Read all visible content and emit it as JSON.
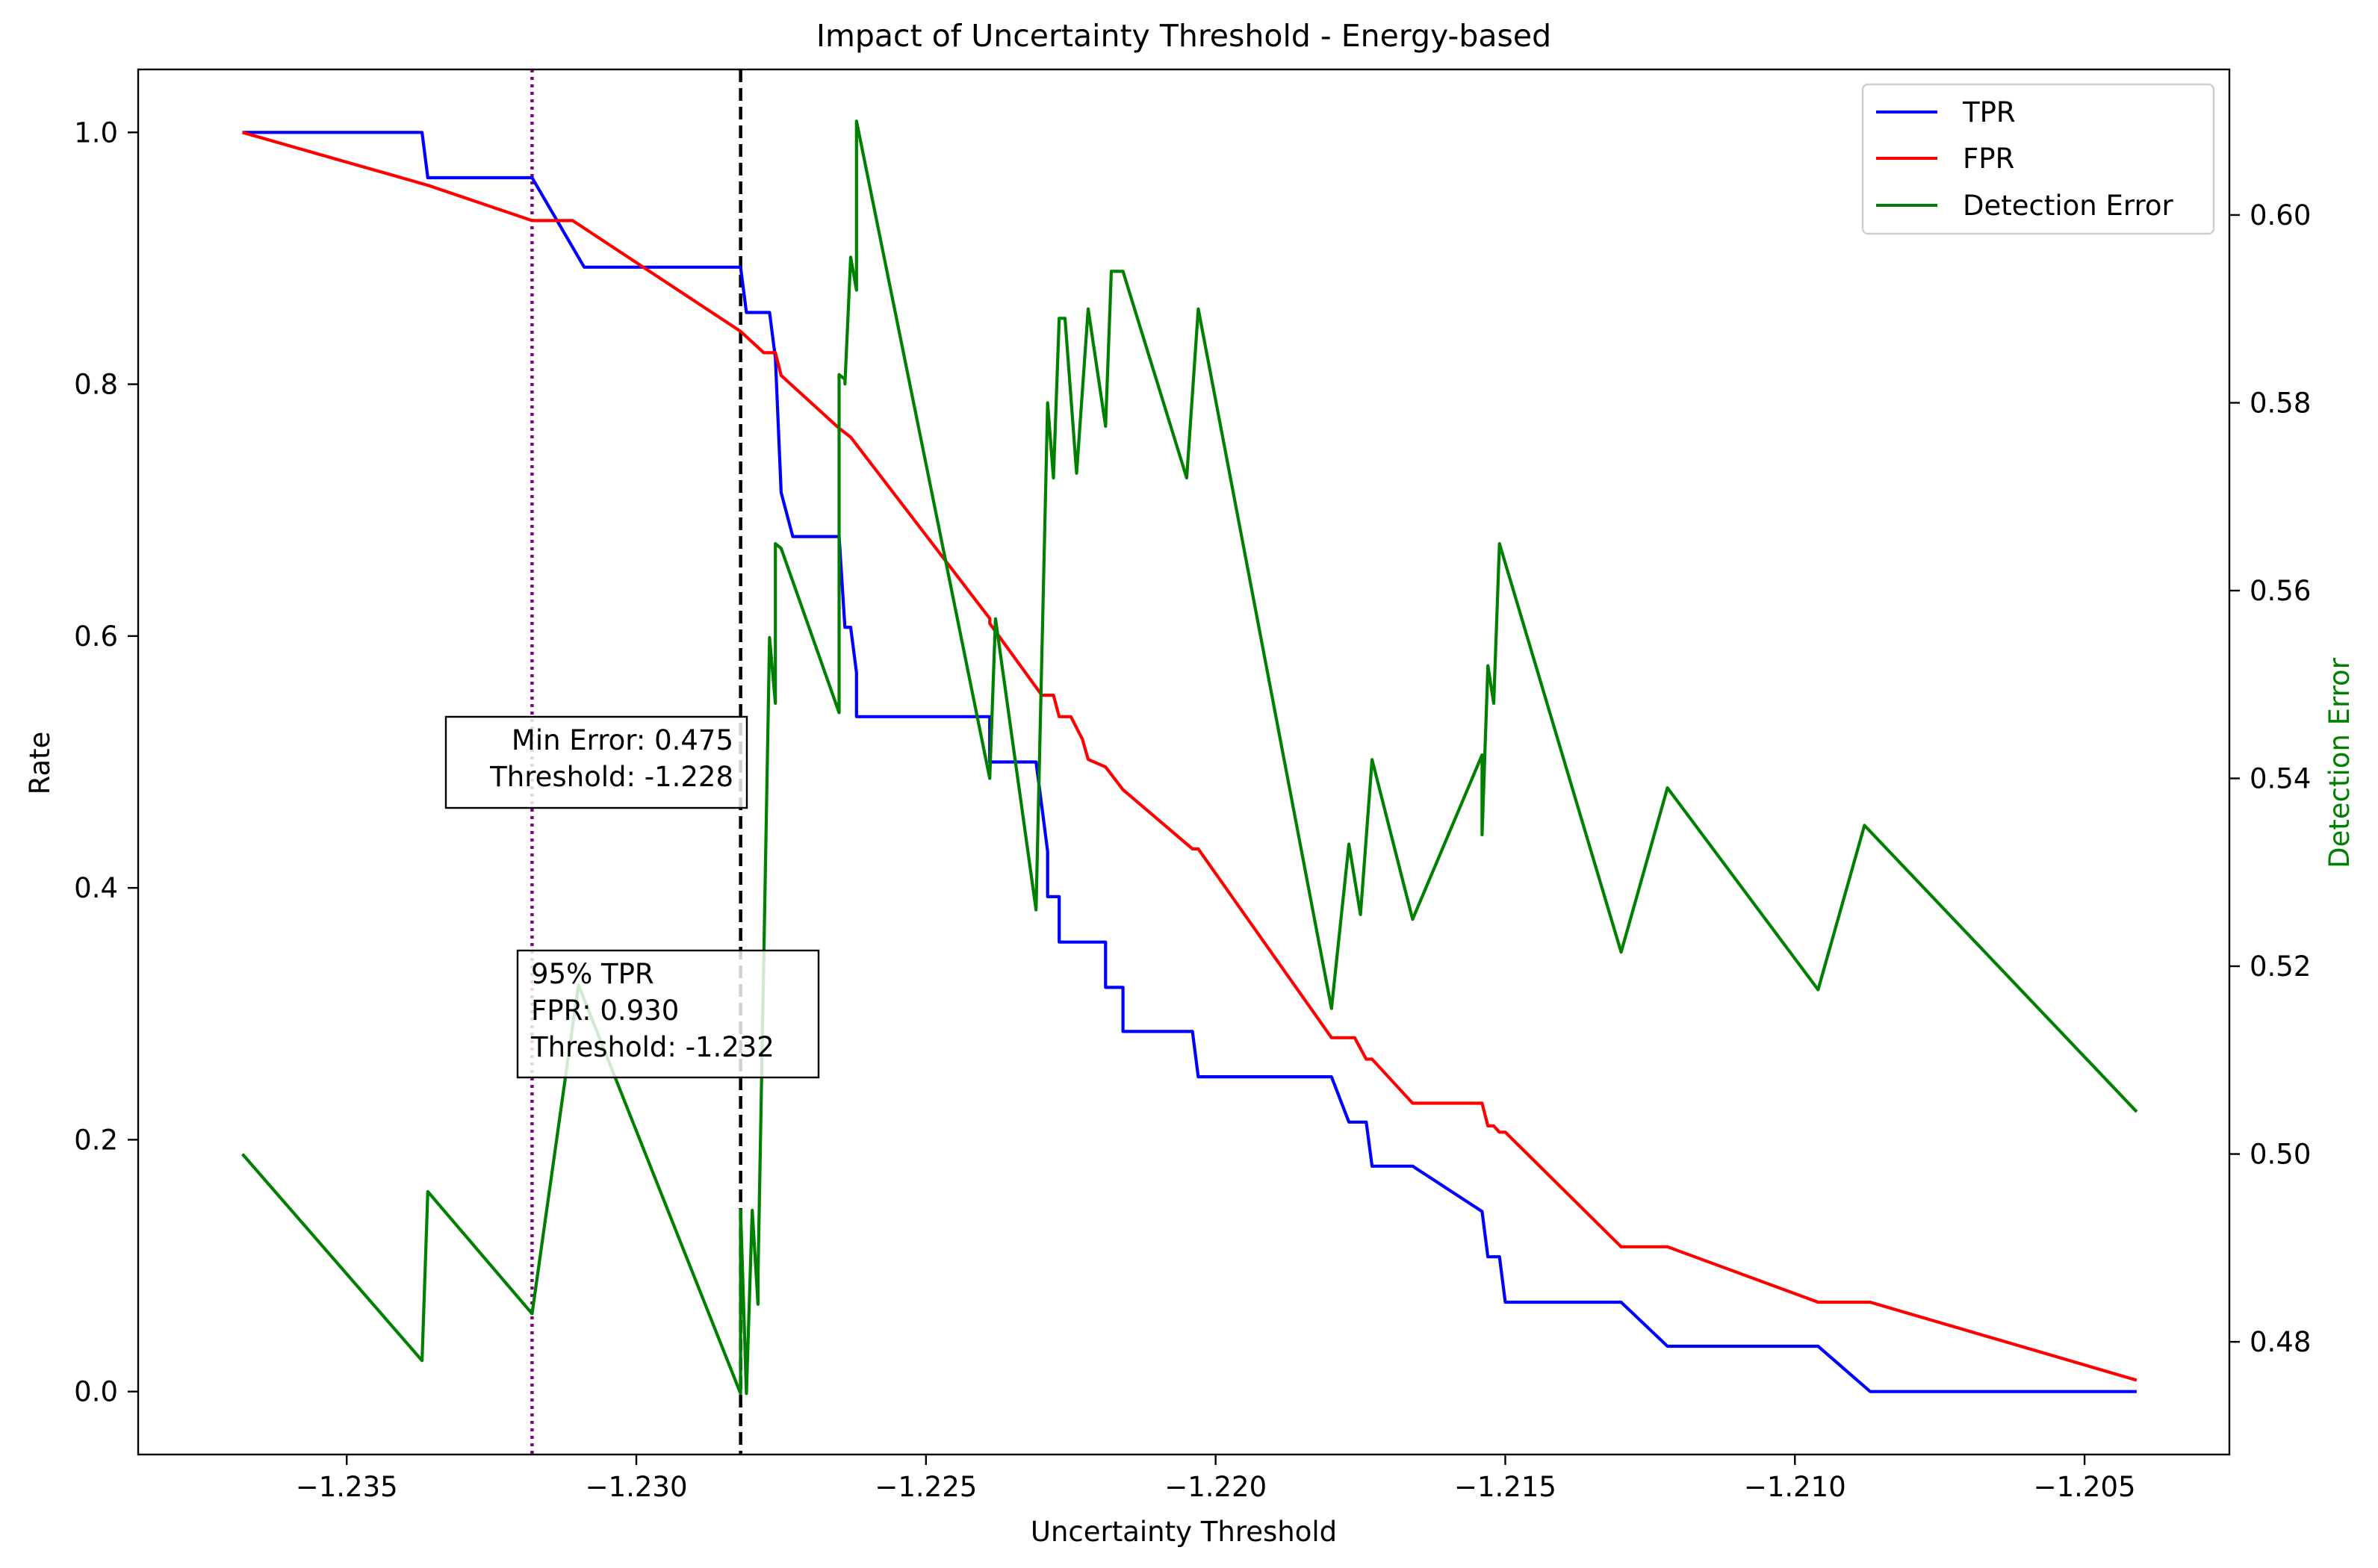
{
  "chart_data": {
    "type": "line",
    "title": "Impact of Uncertainty Threshold - Energy-based",
    "xlabel": "Uncertainty Threshold",
    "ylabel": "Rate",
    "y2label": "Detection Error",
    "xlim": [
      -1.2386,
      -1.2025
    ],
    "ylim": [
      -0.05,
      1.05
    ],
    "y2lim": [
      0.468,
      0.6155
    ],
    "x_ticks": [
      -1.235,
      -1.23,
      -1.225,
      -1.22,
      -1.215,
      -1.21,
      -1.205
    ],
    "x_tick_labels": [
      "−1.235",
      "−1.230",
      "−1.225",
      "−1.220",
      "−1.215",
      "−1.210",
      "−1.205"
    ],
    "y_ticks": [
      0.0,
      0.2,
      0.4,
      0.6,
      0.8,
      1.0
    ],
    "y_tick_labels": [
      "0.0",
      "0.2",
      "0.4",
      "0.6",
      "0.8",
      "1.0"
    ],
    "y2_ticks": [
      0.48,
      0.5,
      0.52,
      0.54,
      0.56,
      0.58,
      0.6
    ],
    "y2_tick_labels": [
      "0.48",
      "0.50",
      "0.52",
      "0.54",
      "0.56",
      "0.58",
      "0.60"
    ],
    "grid": false,
    "legend_position": "top-right",
    "series": [
      {
        "name": "TPR",
        "axis": "left",
        "color": "#0000ff",
        "x": [
          -1.2368,
          -1.2337,
          -1.2336,
          -1.2318,
          -1.2309,
          -1.2282,
          -1.2281,
          -1.2277,
          -1.2276,
          -1.2275,
          -1.2273,
          -1.2265,
          -1.2264,
          -1.2263,
          -1.2262,
          -1.2262,
          -1.2239,
          -1.2239,
          -1.2231,
          -1.2229,
          -1.2229,
          -1.2227,
          -1.2227,
          -1.2226,
          -1.2224,
          -1.2219,
          -1.2219,
          -1.2216,
          -1.2216,
          -1.2204,
          -1.2203,
          -1.218,
          -1.2177,
          -1.2174,
          -1.2173,
          -1.2166,
          -1.2154,
          -1.2153,
          -1.2151,
          -1.215,
          -1.213,
          -1.2122,
          -1.2096,
          -1.2087,
          -1.2041
        ],
        "values": [
          1.0,
          1.0,
          0.964,
          0.964,
          0.893,
          0.893,
          0.857,
          0.857,
          0.821,
          0.714,
          0.679,
          0.679,
          0.607,
          0.607,
          0.571,
          0.536,
          0.536,
          0.5,
          0.5,
          0.429,
          0.393,
          0.393,
          0.357,
          0.357,
          0.357,
          0.357,
          0.321,
          0.321,
          0.286,
          0.286,
          0.25,
          0.25,
          0.214,
          0.214,
          0.179,
          0.179,
          0.143,
          0.107,
          0.107,
          0.071,
          0.071,
          0.036,
          0.036,
          0.0,
          0.0
        ]
      },
      {
        "name": "FPR",
        "axis": "left",
        "color": "#ff0000",
        "x": [
          -1.2368,
          -1.2336,
          -1.2318,
          -1.2311,
          -1.2282,
          -1.2278,
          -1.2276,
          -1.2275,
          -1.2265,
          -1.2263,
          -1.2239,
          -1.2239,
          -1.223,
          -1.2228,
          -1.2227,
          -1.2225,
          -1.2223,
          -1.2222,
          -1.2219,
          -1.2216,
          -1.2204,
          -1.2203,
          -1.218,
          -1.2176,
          -1.2174,
          -1.2173,
          -1.2166,
          -1.2154,
          -1.2153,
          -1.2152,
          -1.2151,
          -1.2151,
          -1.215,
          -1.213,
          -1.2122,
          -1.2096,
          -1.2087,
          -1.2041
        ],
        "values": [
          1.0,
          0.958,
          0.93,
          0.93,
          0.842,
          0.825,
          0.825,
          0.807,
          0.765,
          0.758,
          0.614,
          0.61,
          0.553,
          0.553,
          0.536,
          0.536,
          0.518,
          0.502,
          0.496,
          0.478,
          0.431,
          0.431,
          0.281,
          0.281,
          0.264,
          0.264,
          0.229,
          0.229,
          0.211,
          0.211,
          0.206,
          0.206,
          0.206,
          0.115,
          0.115,
          0.071,
          0.071,
          0.009
        ]
      },
      {
        "name": "Detection Error",
        "axis": "right",
        "color": "#008000",
        "x": [
          -1.2368,
          -1.2337,
          -1.2336,
          -1.2318,
          -1.231,
          -1.2282,
          -1.2282,
          -1.2281,
          -1.228,
          -1.2279,
          -1.2279,
          -1.2278,
          -1.2277,
          -1.2276,
          -1.2276,
          -1.2275,
          -1.2265,
          -1.2265,
          -1.2264,
          -1.2264,
          -1.2263,
          -1.2262,
          -1.2262,
          -1.2262,
          -1.2262,
          -1.2239,
          -1.2238,
          -1.2231,
          -1.2229,
          -1.2228,
          -1.2227,
          -1.2226,
          -1.2224,
          -1.2222,
          -1.2219,
          -1.2218,
          -1.2216,
          -1.2216,
          -1.2205,
          -1.2203,
          -1.218,
          -1.2177,
          -1.2175,
          -1.2173,
          -1.2166,
          -1.2154,
          -1.2154,
          -1.2153,
          -1.2152,
          -1.2151,
          -1.213,
          -1.2122,
          -1.2096,
          -1.2088,
          -1.2041
        ],
        "values": [
          0.5,
          0.478,
          0.496,
          0.483,
          0.518,
          0.4745,
          0.494,
          0.4745,
          0.494,
          0.484,
          0.487,
          0.521,
          0.555,
          0.548,
          0.565,
          0.5645,
          0.547,
          0.583,
          0.5825,
          0.582,
          0.5955,
          0.592,
          0.6,
          0.5955,
          0.61,
          0.54,
          0.557,
          0.526,
          0.58,
          0.572,
          0.589,
          0.589,
          0.5725,
          0.59,
          0.5775,
          0.594,
          0.594,
          0.594,
          0.572,
          0.59,
          0.5155,
          0.533,
          0.5255,
          0.542,
          0.525,
          0.5425,
          0.534,
          0.552,
          0.548,
          0.565,
          0.5215,
          0.539,
          0.5175,
          0.535,
          0.5045
        ]
      }
    ],
    "vlines": [
      {
        "x": -1.2282,
        "color": "#000000",
        "style": "dashed"
      },
      {
        "x": -1.2318,
        "color": "#800080",
        "style": "dotted"
      }
    ],
    "annotations": [
      {
        "id": "min_error",
        "lines": [
          "Min Error: 0.475",
          "Threshold: -1.228"
        ],
        "align": "right"
      },
      {
        "id": "tpr95",
        "lines": [
          "95% TPR",
          "FPR: 0.930",
          "Threshold: -1.232"
        ],
        "align": "left"
      }
    ]
  }
}
